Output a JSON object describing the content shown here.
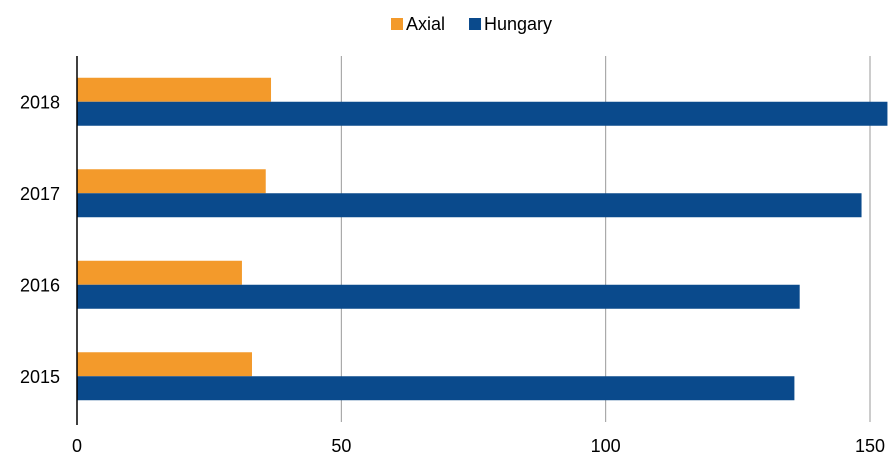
{
  "chart_data": {
    "type": "hbar",
    "categories": [
      "2018",
      "2017",
      "2016",
      "2015"
    ],
    "series": [
      {
        "name": "Axial",
        "color": "#f39a2b",
        "values": [
          36.7,
          35.7,
          31.2,
          33.1
        ]
      },
      {
        "name": "Hungary",
        "color": "#0a4a8c",
        "values": [
          153.3,
          148.4,
          136.7,
          135.7
        ]
      }
    ],
    "xlim": [
      0,
      150
    ],
    "xticks": [
      0,
      50,
      100,
      150
    ],
    "grid": true,
    "legend": "top"
  }
}
